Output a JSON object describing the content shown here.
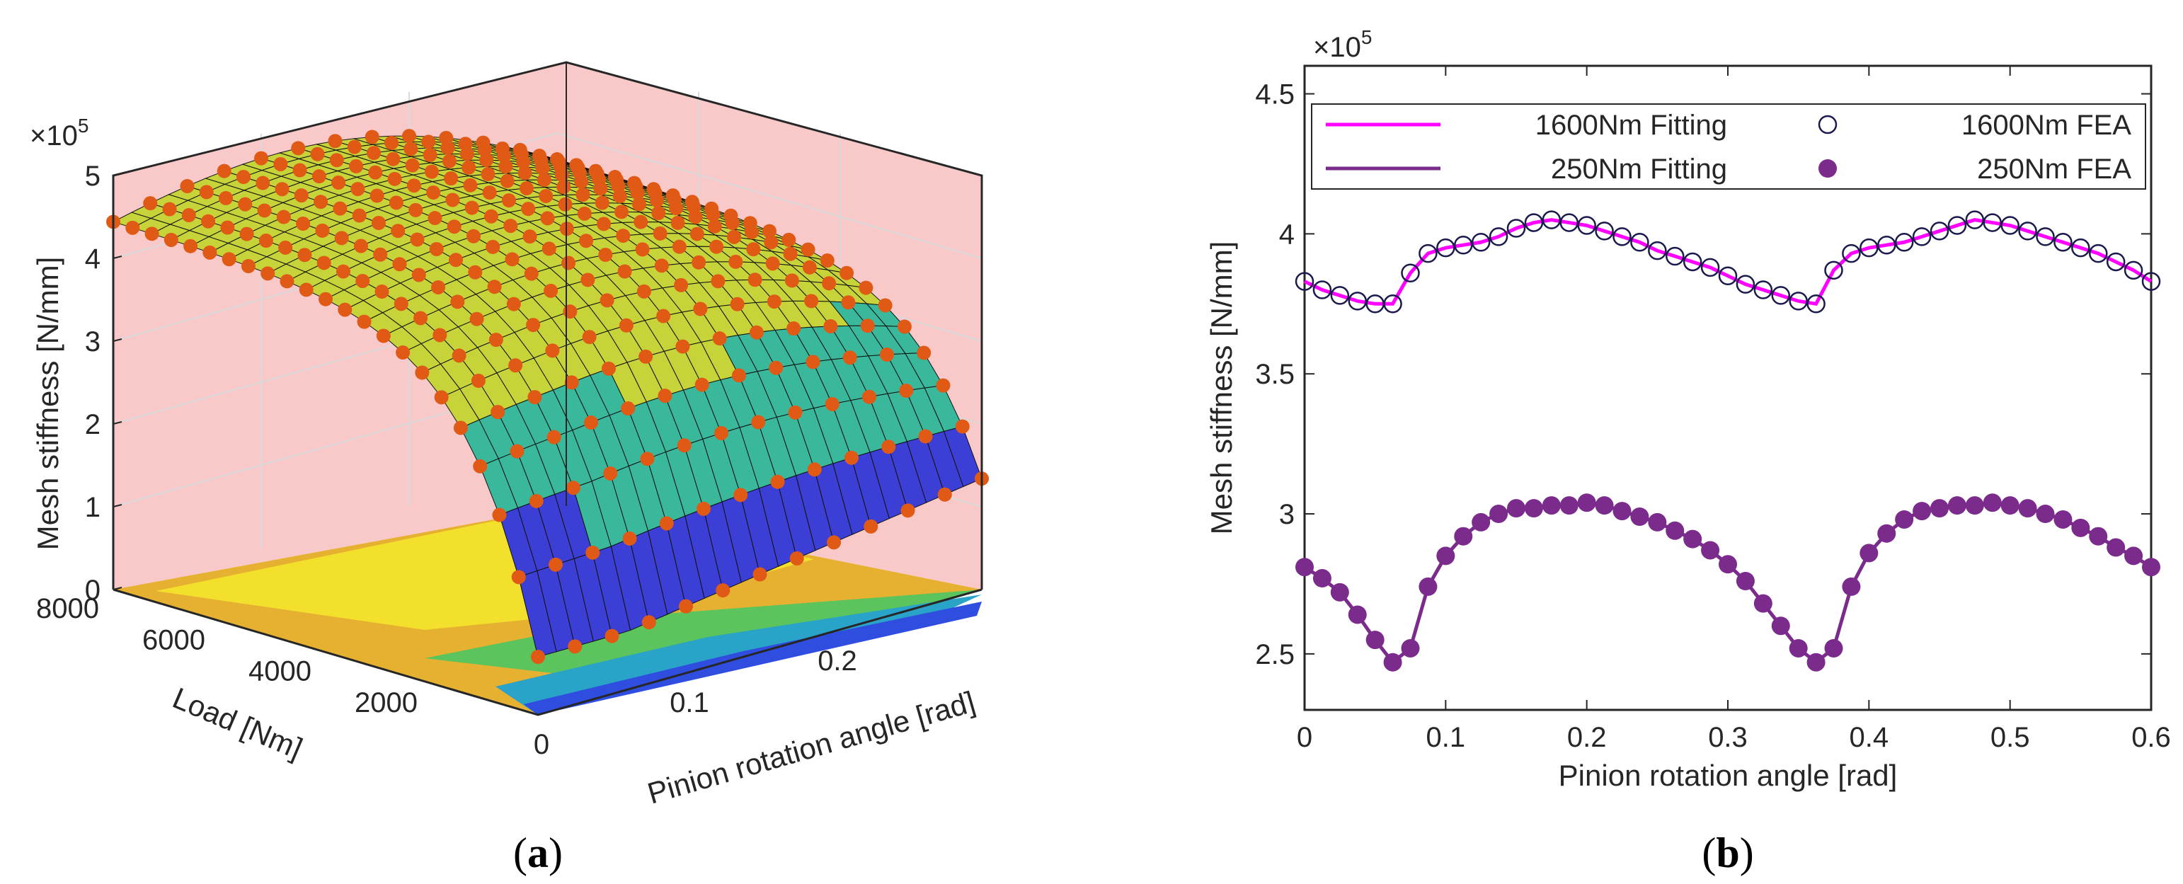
{
  "colors": {
    "surface_top": "#c6d43a",
    "surface_mid": "#39b89b",
    "surface_low": "#3b3fd6",
    "marker": "#e05a16",
    "wall": "#f9c9c9",
    "floor_yellow": "#f2e02c",
    "floor_orange": "#e6b030",
    "floor_green": "#5cc45c",
    "floor_teal": "#2aa3c8",
    "floor_blue": "#2f4ee0",
    "fit_1600": "#ff00ff",
    "fit_250": "#7b2b8c"
  },
  "chart_data": [
    {
      "type": "surface",
      "panel": "(a)",
      "caption_a": "(",
      "caption_letter": "a",
      "caption_b": ")",
      "zlabel": "Mesh stiffness [N/mm]",
      "xlabel": "Pinion rotation angle [rad]",
      "ylabel": "Load [Nm]",
      "z_exponent_base": "×10",
      "z_exponent_power": "5",
      "z_ticks": [
        "0",
        "1",
        "2",
        "3",
        "4",
        "5"
      ],
      "z_range": [
        0,
        5
      ],
      "load_ticks": [
        "8000",
        "6000",
        "4000",
        "2000"
      ],
      "angle_ticks": [
        "0",
        "0.1",
        "0.2"
      ],
      "load_range": [
        0,
        8000
      ],
      "angle_range": [
        0,
        0.3
      ],
      "description_values": {
        "max_stiffness_high_load": 4.5,
        "min_stiffness_low_load": 0.7
      },
      "grid": true
    },
    {
      "type": "line",
      "panel": "(b)",
      "caption_a": "(",
      "caption_letter": "b",
      "caption_b": ")",
      "title": "",
      "xlabel": "Pinion rotation angle [rad]",
      "ylabel": "Mesh stiffness [N/mm]",
      "y_exponent_base": "×10",
      "y_exponent_power": "5",
      "xlim": [
        0,
        0.6
      ],
      "ylim": [
        2.3,
        4.6
      ],
      "x_ticks": [
        "0",
        "0.1",
        "0.2",
        "0.3",
        "0.4",
        "0.5",
        "0.6"
      ],
      "y_ticks": [
        "2.5",
        "3",
        "3.5",
        "4",
        "4.5"
      ],
      "legend_position": "top",
      "legend": {
        "fit_1600": "1600Nm Fitting",
        "fea_1600": "1600Nm FEA",
        "fit_250": "250Nm Fitting",
        "fea_250": "250Nm FEA"
      },
      "x": [
        0,
        0.0125,
        0.025,
        0.0375,
        0.05,
        0.0625,
        0.075,
        0.0875,
        0.1,
        0.1125,
        0.125,
        0.1375,
        0.15,
        0.1625,
        0.175,
        0.1875,
        0.2,
        0.2125,
        0.225,
        0.2375,
        0.25,
        0.2625,
        0.275,
        0.2875,
        0.3,
        0.3125,
        0.325,
        0.3375,
        0.35,
        0.3625,
        0.375,
        0.3875,
        0.4,
        0.4125,
        0.425,
        0.4375,
        0.45,
        0.4625,
        0.475,
        0.4875,
        0.5,
        0.5125,
        0.525,
        0.5375,
        0.55,
        0.5625,
        0.575,
        0.5875,
        0.6
      ],
      "series": [
        {
          "name": "1600Nm",
          "values": [
            3.83,
            3.8,
            3.78,
            3.76,
            3.75,
            3.75,
            3.86,
            3.93,
            3.95,
            3.96,
            3.97,
            3.99,
            4.02,
            4.04,
            4.05,
            4.04,
            4.03,
            4.01,
            3.99,
            3.97,
            3.94,
            3.92,
            3.9,
            3.88,
            3.85,
            3.82,
            3.8,
            3.78,
            3.76,
            3.75,
            3.87,
            3.93,
            3.95,
            3.96,
            3.97,
            3.99,
            4.01,
            4.03,
            4.05,
            4.04,
            4.03,
            4.01,
            3.99,
            3.97,
            3.95,
            3.93,
            3.9,
            3.87,
            3.83
          ]
        },
        {
          "name": "250Nm",
          "values": [
            2.81,
            2.77,
            2.72,
            2.64,
            2.55,
            2.47,
            2.52,
            2.74,
            2.85,
            2.92,
            2.97,
            3.0,
            3.02,
            3.02,
            3.03,
            3.03,
            3.04,
            3.03,
            3.01,
            2.99,
            2.97,
            2.94,
            2.91,
            2.87,
            2.82,
            2.76,
            2.68,
            2.6,
            2.52,
            2.47,
            2.52,
            2.74,
            2.86,
            2.93,
            2.98,
            3.01,
            3.02,
            3.03,
            3.03,
            3.04,
            3.03,
            3.02,
            3.0,
            2.98,
            2.95,
            2.92,
            2.88,
            2.85,
            2.81
          ]
        }
      ]
    }
  ]
}
